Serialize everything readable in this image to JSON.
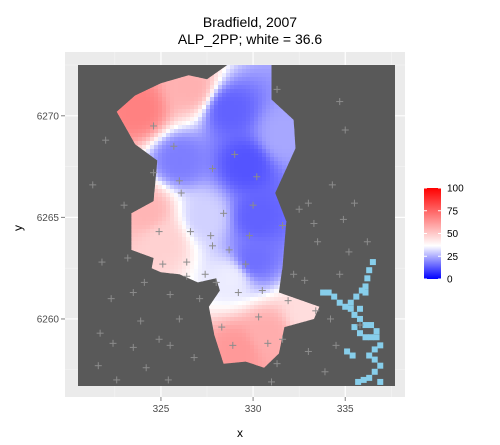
{
  "chart_data": {
    "type": "heatmap",
    "title": "Bradfield, 2007",
    "subtitle": "ALP_2PP; white = 36.6",
    "xlabel": "x",
    "ylabel": "y",
    "xlim": [
      320.5,
      337.7
    ],
    "ylim": [
      6256.7,
      6272.5
    ],
    "x_ticks": [
      325,
      330,
      335
    ],
    "y_ticks": [
      6260,
      6265,
      6270
    ],
    "x_tick_labels": [
      "325",
      "330",
      "335"
    ],
    "y_tick_labels": [
      "6260",
      "6265",
      "6270"
    ],
    "grid": true,
    "legend_position": "right",
    "legend": {
      "title": "",
      "range": [
        0,
        100
      ],
      "midpoint": 36.6,
      "ticks": [
        0,
        25,
        50,
        75,
        100
      ],
      "tick_labels": [
        "0",
        "25",
        "50",
        "75",
        "100"
      ],
      "low_color": "#0000ff",
      "mid_color": "#ffffff",
      "high_color": "#ff0000"
    },
    "colors": {
      "panel_background": "#ebebeb",
      "outside_area": "#595959",
      "water": "#87ceeb",
      "marker": "#8c8c8c"
    },
    "value_centers": [
      {
        "x": 323.8,
        "y": 6270.3,
        "value": 68
      },
      {
        "x": 326.6,
        "y": 6271.4,
        "value": 56
      },
      {
        "x": 324.2,
        "y": 6265.3,
        "value": 55
      },
      {
        "x": 325.1,
        "y": 6263.8,
        "value": 48
      },
      {
        "x": 330.8,
        "y": 6259.2,
        "value": 57
      },
      {
        "x": 329.2,
        "y": 6258.4,
        "value": 62
      },
      {
        "x": 333.0,
        "y": 6260.2,
        "value": 45
      },
      {
        "x": 328.7,
        "y": 6270.3,
        "value": 14
      },
      {
        "x": 329.6,
        "y": 6267.6,
        "value": 12
      },
      {
        "x": 330.2,
        "y": 6265.0,
        "value": 14
      },
      {
        "x": 330.0,
        "y": 6262.9,
        "value": 16
      },
      {
        "x": 326.0,
        "y": 6267.8,
        "value": 18
      },
      {
        "x": 331.6,
        "y": 6269.0,
        "value": 24
      },
      {
        "x": 327.4,
        "y": 6265.0,
        "value": 30
      },
      {
        "x": 328.8,
        "y": 6262.0,
        "value": 34
      }
    ],
    "region_outline": [
      [
        324.5,
        6262.5
      ],
      [
        324.6,
        6263.0
      ],
      [
        323.4,
        6263.4
      ],
      [
        323.4,
        6265.2
      ],
      [
        324.6,
        6265.8
      ],
      [
        324.8,
        6267.8
      ],
      [
        323.6,
        6268.6
      ],
      [
        322.6,
        6270.2
      ],
      [
        323.6,
        6271.0
      ],
      [
        325.0,
        6271.6
      ],
      [
        326.5,
        6272.0
      ],
      [
        327.5,
        6271.8
      ],
      [
        328.6,
        6272.5
      ],
      [
        331.0,
        6272.5
      ],
      [
        331.0,
        6270.8
      ],
      [
        332.2,
        6269.8
      ],
      [
        332.3,
        6268.4
      ],
      [
        331.2,
        6266.2
      ],
      [
        331.8,
        6264.8
      ],
      [
        331.6,
        6262.6
      ],
      [
        331.4,
        6261.3
      ],
      [
        333.6,
        6260.6
      ],
      [
        333.3,
        6260.0
      ],
      [
        331.7,
        6259.6
      ],
      [
        331.4,
        6258.3
      ],
      [
        330.6,
        6257.6
      ],
      [
        329.6,
        6257.9
      ],
      [
        328.4,
        6257.8
      ],
      [
        327.9,
        6259.2
      ],
      [
        327.6,
        6260.6
      ],
      [
        328.2,
        6261.4
      ],
      [
        328.0,
        6262.0
      ],
      [
        327.0,
        6261.8
      ],
      [
        326.0,
        6262.2
      ],
      [
        325.0,
        6262.3
      ]
    ],
    "water_cells": [
      [
        333.8,
        6261.3
      ],
      [
        334.1,
        6261.3
      ],
      [
        334.4,
        6261.1
      ],
      [
        334.7,
        6260.8
      ],
      [
        335.0,
        6260.6
      ],
      [
        335.3,
        6260.5
      ],
      [
        335.3,
        6260.8
      ],
      [
        335.6,
        6261.1
      ],
      [
        335.9,
        6261.4
      ],
      [
        336.1,
        6261.6
      ],
      [
        336.1,
        6261.3
      ],
      [
        335.8,
        6260.5
      ],
      [
        335.5,
        6260.2
      ],
      [
        335.8,
        6260.0
      ],
      [
        336.1,
        6259.7
      ],
      [
        336.4,
        6259.7
      ],
      [
        336.7,
        6259.4
      ],
      [
        336.4,
        6259.1
      ],
      [
        336.1,
        6259.1
      ],
      [
        335.8,
        6259.3
      ],
      [
        335.5,
        6259.6
      ],
      [
        336.7,
        6259.1
      ],
      [
        336.9,
        6258.7
      ],
      [
        336.6,
        6258.5
      ],
      [
        336.3,
        6258.2
      ],
      [
        336.6,
        6258.0
      ],
      [
        336.9,
        6257.7
      ],
      [
        336.6,
        6257.4
      ],
      [
        336.3,
        6257.1
      ],
      [
        336.0,
        6257.0
      ],
      [
        335.7,
        6256.9
      ],
      [
        336.9,
        6256.9
      ],
      [
        336.2,
        6262.0
      ],
      [
        336.3,
        6262.4
      ],
      [
        336.5,
        6262.8
      ],
      [
        335.4,
        6258.2
      ],
      [
        335.1,
        6258.4
      ]
    ],
    "markers": [
      [
        321.3,
        6266.6
      ],
      [
        322.0,
        6268.8
      ],
      [
        321.8,
        6262.8
      ],
      [
        322.3,
        6261.0
      ],
      [
        321.7,
        6259.3
      ],
      [
        322.4,
        6258.8
      ],
      [
        321.6,
        6257.7
      ],
      [
        322.6,
        6257.0
      ],
      [
        323.0,
        6265.6
      ],
      [
        323.2,
        6263.0
      ],
      [
        323.5,
        6261.3
      ],
      [
        323.9,
        6259.9
      ],
      [
        323.5,
        6258.6
      ],
      [
        324.2,
        6257.6
      ],
      [
        324.6,
        6269.5
      ],
      [
        324.6,
        6267.2
      ],
      [
        324.9,
        6264.3
      ],
      [
        325.1,
        6262.7
      ],
      [
        325.5,
        6261.2
      ],
      [
        324.9,
        6259.0
      ],
      [
        325.5,
        6258.7
      ],
      [
        325.4,
        6257.0
      ],
      [
        325.7,
        6268.5
      ],
      [
        326.0,
        6266.8
      ],
      [
        326.1,
        6266.2
      ],
      [
        326.6,
        6264.3
      ],
      [
        326.4,
        6262.1
      ],
      [
        326.0,
        6260.0
      ],
      [
        326.8,
        6258.1
      ],
      [
        327.1,
        6261.0
      ],
      [
        327.4,
        6262.2
      ],
      [
        327.7,
        6264.1
      ],
      [
        327.8,
        6263.6
      ],
      [
        327.8,
        6267.4
      ],
      [
        328.4,
        6265.2
      ],
      [
        328.7,
        6263.4
      ],
      [
        328.0,
        6261.8
      ],
      [
        328.3,
        6259.6
      ],
      [
        328.9,
        6258.7
      ],
      [
        329.2,
        6261.3
      ],
      [
        329.6,
        6262.7
      ],
      [
        329.8,
        6264.1
      ],
      [
        330.0,
        6265.6
      ],
      [
        330.2,
        6267.0
      ],
      [
        330.5,
        6261.4
      ],
      [
        330.3,
        6260.1
      ],
      [
        330.8,
        6258.8
      ],
      [
        331.0,
        6256.9
      ],
      [
        331.3,
        6257.8
      ],
      [
        331.6,
        6259.0
      ],
      [
        331.9,
        6260.9
      ],
      [
        332.2,
        6262.2
      ],
      [
        331.6,
        6264.6
      ],
      [
        332.5,
        6265.4
      ],
      [
        333.0,
        6265.7
      ],
      [
        333.3,
        6264.7
      ],
      [
        333.5,
        6263.8
      ],
      [
        332.8,
        6261.9
      ],
      [
        333.4,
        6260.4
      ],
      [
        333.0,
        6258.4
      ],
      [
        333.9,
        6257.4
      ],
      [
        334.5,
        6258.7
      ],
      [
        334.2,
        6260.0
      ],
      [
        334.7,
        6262.2
      ],
      [
        335.2,
        6263.3
      ],
      [
        334.9,
        6264.9
      ],
      [
        335.5,
        6265.7
      ],
      [
        334.3,
        6266.6
      ],
      [
        335.0,
        6269.3
      ],
      [
        334.7,
        6270.7
      ],
      [
        335.8,
        6259.7
      ],
      [
        336.2,
        6263.8
      ],
      [
        329.0,
        6268.1
      ],
      [
        331.3,
        6271.3
      ],
      [
        326.4,
        6262.8
      ],
      [
        324.1,
        6261.8
      ]
    ]
  }
}
